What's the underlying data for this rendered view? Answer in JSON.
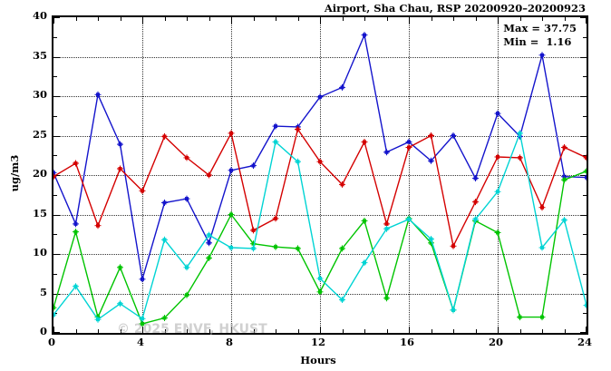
{
  "title": "Airport, Sha Chau, RSP 20200920–20200923",
  "annotation": {
    "max_label": "Max = 37.75",
    "min_label": "Min =  1.16"
  },
  "watermark": "© 2025 ENVF, HKUST",
  "chart_data": {
    "type": "line",
    "title": "Airport, Sha Chau, RSP 20200920–20200923",
    "xlabel": "Hours",
    "ylabel": "ug/m3",
    "xlim": [
      0,
      24
    ],
    "ylim": [
      0,
      40
    ],
    "x_major_ticks": [
      0,
      4,
      8,
      12,
      16,
      20,
      24
    ],
    "x_minor_step": 1,
    "y_major_ticks": [
      0,
      5,
      10,
      15,
      20,
      25,
      30,
      35,
      40
    ],
    "y_minor_step": 2.5,
    "grid": "dotted",
    "legend": "none",
    "stat_max": 37.75,
    "stat_min": 1.16,
    "x": [
      0,
      1,
      2,
      3,
      4,
      5,
      6,
      7,
      8,
      9,
      10,
      11,
      12,
      13,
      14,
      15,
      16,
      17,
      18,
      19,
      20,
      21,
      22,
      23,
      24
    ],
    "series": [
      {
        "name": "series-blue",
        "color": "#1414cc",
        "values": [
          20.3,
          13.8,
          30.2,
          23.9,
          6.8,
          16.5,
          17.0,
          11.4,
          20.6,
          21.2,
          26.2,
          26.1,
          29.9,
          31.1,
          37.75,
          22.9,
          24.2,
          21.8,
          25.0,
          19.6,
          27.8,
          24.9,
          35.2,
          19.8,
          19.7
        ]
      },
      {
        "name": "series-red",
        "color": "#d40000",
        "values": [
          19.8,
          21.5,
          13.6,
          20.8,
          18.0,
          24.9,
          22.2,
          20.0,
          25.3,
          13.0,
          14.5,
          25.8,
          21.7,
          18.8,
          24.2,
          13.8,
          23.5,
          25.0,
          11.0,
          16.6,
          22.3,
          22.2,
          15.9,
          23.5,
          22.2
        ]
      },
      {
        "name": "series-green",
        "color": "#00c400",
        "values": [
          3.2,
          12.8,
          2.0,
          8.3,
          1.16,
          1.9,
          4.8,
          9.5,
          15.0,
          11.3,
          10.9,
          10.7,
          5.2,
          10.7,
          14.2,
          4.4,
          14.5,
          11.4,
          2.9,
          14.2,
          12.7,
          2.0,
          2.0,
          19.4,
          20.5
        ]
      },
      {
        "name": "series-cyan",
        "color": "#00d4d4",
        "values": [
          2.3,
          5.9,
          1.7,
          3.7,
          1.8,
          11.8,
          8.3,
          12.4,
          10.8,
          10.7,
          24.2,
          21.7,
          6.9,
          4.2,
          8.9,
          13.2,
          14.4,
          11.9,
          2.9,
          14.4,
          17.9,
          25.3,
          10.8,
          14.3,
          3.5
        ]
      }
    ]
  }
}
